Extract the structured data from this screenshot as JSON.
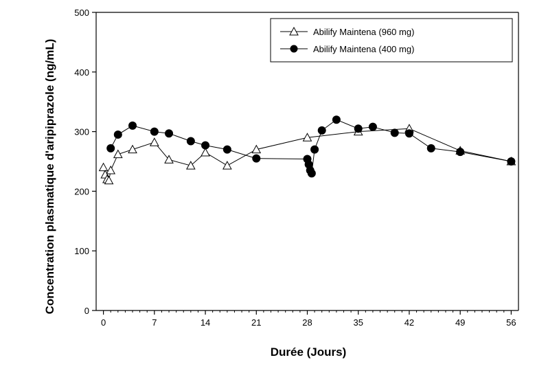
{
  "chart_data": {
    "type": "line",
    "xlabel": "Durée (Jours)",
    "ylabel": "Concentration plasmatique d'aripiprazole (ng/mL)",
    "xlim": [
      -1,
      57
    ],
    "ylim": [
      0,
      500
    ],
    "xticks": [
      0,
      7,
      14,
      21,
      28,
      35,
      42,
      49,
      56
    ],
    "yticks": [
      0,
      100,
      200,
      300,
      400,
      500
    ],
    "grid": false,
    "legend_position": "top-right",
    "series": [
      {
        "name": "Abilify Maintena (960 mg)",
        "marker": "open-triangle",
        "color": "#000000",
        "x": [
          0,
          0.25,
          0.5,
          0.75,
          1,
          2,
          4,
          7,
          9,
          12,
          14,
          17,
          21,
          28,
          35,
          42,
          49,
          56
        ],
        "y": [
          240,
          228,
          220,
          218,
          235,
          262,
          270,
          282,
          253,
          243,
          265,
          243,
          270,
          290,
          300,
          305,
          268,
          250
        ]
      },
      {
        "name": "Abilify Maintena (400 mg)",
        "marker": "filled-circle",
        "color": "#000000",
        "x": [
          1,
          2,
          4,
          7,
          9,
          12,
          14,
          17,
          21,
          28,
          28.2,
          28.4,
          28.6,
          29,
          30,
          32,
          35,
          37,
          40,
          42,
          45,
          49,
          56
        ],
        "y": [
          272,
          295,
          310,
          300,
          297,
          284,
          277,
          270,
          255,
          254,
          245,
          235,
          230,
          270,
          302,
          320,
          305,
          308,
          298,
          297,
          272,
          266,
          250
        ]
      }
    ]
  }
}
